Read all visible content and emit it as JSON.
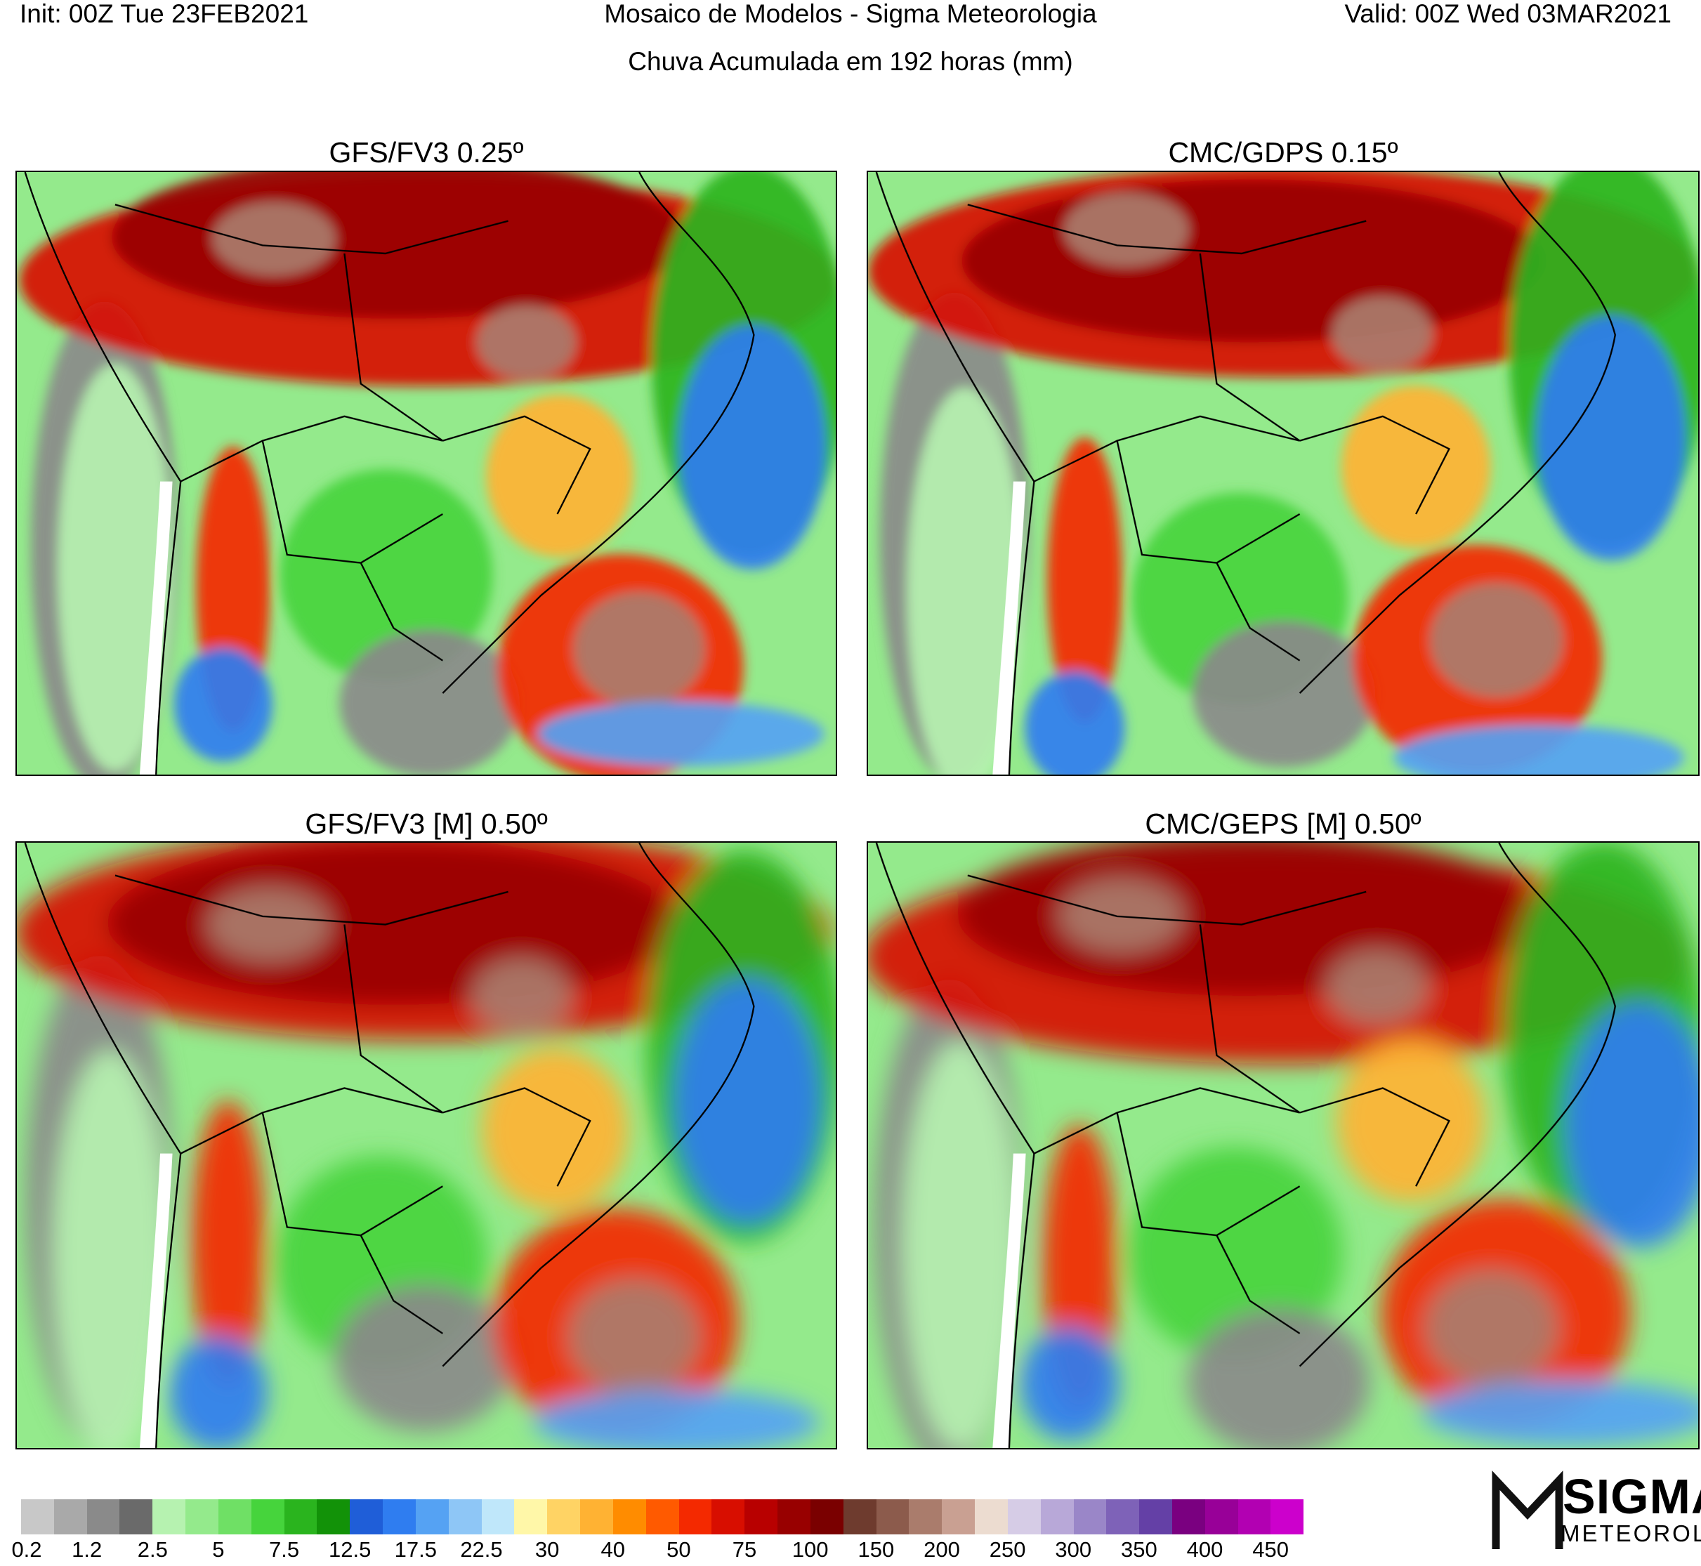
{
  "header": {
    "init": "Init: 00Z Tue 23FEB2021",
    "title": "Mosaico de Modelos - Sigma Meteorologia",
    "valid": "Valid: 00Z Wed 03MAR2021",
    "subtitle": "Chuva Acumulada em 192 horas (mm)"
  },
  "panels": [
    {
      "title": "GFS/FV3 0.25º"
    },
    {
      "title": "CMC/GDPS 0.15º"
    },
    {
      "title": "GFS/FV3 [M] 0.50º"
    },
    {
      "title": "CMC/GEPS [M] 0.50º"
    }
  ],
  "colorbar": {
    "colors": [
      "#c8c8c8",
      "#a9a9a9",
      "#8a8a8a",
      "#6a6a6a",
      "#b6f2b0",
      "#94ea8c",
      "#6fe065",
      "#46d43c",
      "#2ab41e",
      "#129208",
      "#1f5ed8",
      "#2f7df0",
      "#55a2f3",
      "#8ec6f6",
      "#bfe7fa",
      "#fff7a8",
      "#ffd364",
      "#ffb233",
      "#ff8c00",
      "#ff5a00",
      "#f42900",
      "#d80e00",
      "#b80000",
      "#980000",
      "#7a0000",
      "#6e3b2e",
      "#8c5b4c",
      "#aa7c6c",
      "#c9a092",
      "#ecdcd0",
      "#d6cce6",
      "#b8a8d8",
      "#9a86c8",
      "#7e62b8",
      "#6440a6",
      "#7a0080",
      "#980098",
      "#b200b2",
      "#cc00cc"
    ],
    "labels": [
      "0.2",
      "1.2",
      "2.5",
      "5",
      "7.5",
      "12.5",
      "17.5",
      "22.5",
      "30",
      "40",
      "50",
      "75",
      "100",
      "150",
      "200",
      "250",
      "300",
      "350",
      "400",
      "450"
    ]
  },
  "logo": {
    "text": "SIGMA",
    "sub": "METEOROLOGIA"
  }
}
